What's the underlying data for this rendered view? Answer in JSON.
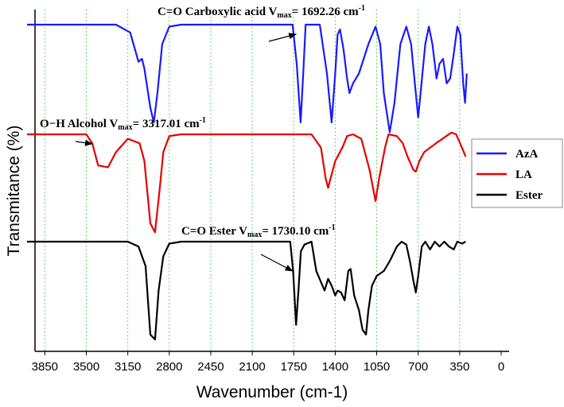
{
  "chart_data": {
    "type": "line",
    "xlabel": "Wavenumber (cm-1)",
    "ylabel": "Transmitance (%)",
    "xlim": [
      4000,
      0
    ],
    "x_reversed": true,
    "x_ticks": [
      3850,
      3500,
      3150,
      2800,
      2450,
      2100,
      1750,
      1400,
      1050,
      700,
      350,
      0
    ],
    "grid": "vertical dotted green",
    "legend_placement": "right",
    "series": [
      {
        "name": "AzA",
        "color": "#1a1aff",
        "baseline": 1,
        "points": [
          [
            4000,
            0
          ],
          [
            3250,
            0
          ],
          [
            3130,
            -0.08
          ],
          [
            3060,
            -0.38
          ],
          [
            3030,
            -0.35
          ],
          [
            3010,
            -0.45
          ],
          [
            2960,
            -0.85
          ],
          [
            2930,
            -1.0
          ],
          [
            2900,
            -0.7
          ],
          [
            2860,
            -0.2
          ],
          [
            2800,
            -0.02
          ],
          [
            2700,
            0
          ],
          [
            1760,
            0
          ],
          [
            1725,
            -0.4
          ],
          [
            1692,
            -1.0
          ],
          [
            1670,
            -0.5
          ],
          [
            1650,
            0
          ],
          [
            1530,
            0
          ],
          [
            1470,
            -0.5
          ],
          [
            1430,
            -1.0
          ],
          [
            1400,
            -0.5
          ],
          [
            1380,
            -0.1
          ],
          [
            1360,
            -0.05
          ],
          [
            1330,
            -0.25
          ],
          [
            1300,
            -0.55
          ],
          [
            1280,
            -0.7
          ],
          [
            1250,
            -0.6
          ],
          [
            1200,
            -0.5
          ],
          [
            1120,
            -0.2
          ],
          [
            1060,
            -0.02
          ],
          [
            1020,
            -0.2
          ],
          [
            990,
            -0.7
          ],
          [
            940,
            -1.1
          ],
          [
            900,
            -0.8
          ],
          [
            850,
            -0.2
          ],
          [
            800,
            -0.02
          ],
          [
            760,
            -0.2
          ],
          [
            720,
            -0.7
          ],
          [
            700,
            -0.95
          ],
          [
            680,
            -0.7
          ],
          [
            640,
            -0.2
          ],
          [
            610,
            -0.02
          ],
          [
            580,
            -0.2
          ],
          [
            545,
            -0.55
          ],
          [
            520,
            -0.4
          ],
          [
            490,
            -0.35
          ],
          [
            460,
            -0.6
          ],
          [
            430,
            -0.55
          ],
          [
            400,
            -0.3
          ],
          [
            370,
            -0.02
          ],
          [
            345,
            -0.1
          ],
          [
            320,
            -0.6
          ],
          [
            305,
            -0.8
          ],
          [
            290,
            -0.5
          ]
        ]
      },
      {
        "name": "LA",
        "color": "#e60000",
        "baseline": 0,
        "points": [
          [
            4000,
            0
          ],
          [
            3500,
            0
          ],
          [
            3450,
            -0.1
          ],
          [
            3400,
            -0.35
          ],
          [
            3317,
            -0.37
          ],
          [
            3250,
            -0.2
          ],
          [
            3150,
            -0.05
          ],
          [
            3050,
            -0.1
          ],
          [
            3010,
            -0.3
          ],
          [
            2960,
            -1.0
          ],
          [
            2920,
            -1.1
          ],
          [
            2880,
            -0.6
          ],
          [
            2850,
            -0.2
          ],
          [
            2800,
            -0.02
          ],
          [
            2700,
            0
          ],
          [
            1600,
            0
          ],
          [
            1520,
            -0.15
          ],
          [
            1480,
            -0.5
          ],
          [
            1460,
            -0.6
          ],
          [
            1440,
            -0.5
          ],
          [
            1400,
            -0.3
          ],
          [
            1340,
            -0.15
          ],
          [
            1300,
            -0.02
          ],
          [
            1250,
            0
          ],
          [
            1180,
            -0.05
          ],
          [
            1110,
            -0.4
          ],
          [
            1060,
            -0.75
          ],
          [
            1030,
            -0.5
          ],
          [
            980,
            -0.15
          ],
          [
            950,
            0
          ],
          [
            880,
            -0.02
          ],
          [
            830,
            -0.1
          ],
          [
            790,
            -0.25
          ],
          [
            740,
            -0.4
          ],
          [
            720,
            -0.42
          ],
          [
            690,
            -0.3
          ],
          [
            650,
            -0.2
          ],
          [
            550,
            -0.1
          ],
          [
            420,
            0.02
          ],
          [
            380,
            0
          ],
          [
            330,
            -0.15
          ],
          [
            300,
            -0.25
          ]
        ]
      },
      {
        "name": "Ester",
        "color": "#000000",
        "baseline": -1,
        "points": [
          [
            4000,
            0
          ],
          [
            3150,
            0
          ],
          [
            3060,
            -0.05
          ],
          [
            3000,
            -0.25
          ],
          [
            2960,
            -0.95
          ],
          [
            2920,
            -1.0
          ],
          [
            2890,
            -0.5
          ],
          [
            2850,
            -0.15
          ],
          [
            2800,
            -0.02
          ],
          [
            2700,
            0
          ],
          [
            1780,
            0
          ],
          [
            1755,
            -0.3
          ],
          [
            1730,
            -0.85
          ],
          [
            1710,
            -0.5
          ],
          [
            1690,
            -0.1
          ],
          [
            1660,
            -0.03
          ],
          [
            1600,
            0
          ],
          [
            1560,
            -0.3
          ],
          [
            1490,
            -0.5
          ],
          [
            1460,
            -0.38
          ],
          [
            1430,
            -0.45
          ],
          [
            1400,
            -0.55
          ],
          [
            1380,
            -0.5
          ],
          [
            1350,
            -0.52
          ],
          [
            1320,
            -0.6
          ],
          [
            1290,
            -0.3
          ],
          [
            1270,
            -0.28
          ],
          [
            1240,
            -0.55
          ],
          [
            1200,
            -0.7
          ],
          [
            1170,
            -0.9
          ],
          [
            1140,
            -0.95
          ],
          [
            1120,
            -0.7
          ],
          [
            1090,
            -0.45
          ],
          [
            1050,
            -0.35
          ],
          [
            990,
            -0.3
          ],
          [
            940,
            -0.2
          ],
          [
            880,
            -0.05
          ],
          [
            840,
            0
          ],
          [
            800,
            -0.03
          ],
          [
            770,
            -0.2
          ],
          [
            740,
            -0.4
          ],
          [
            720,
            -0.52
          ],
          [
            700,
            -0.35
          ],
          [
            670,
            -0.05
          ],
          [
            640,
            0
          ],
          [
            600,
            -0.08
          ],
          [
            560,
            0
          ],
          [
            520,
            -0.05
          ],
          [
            480,
            0
          ],
          [
            440,
            -0.05
          ],
          [
            400,
            -0.08
          ],
          [
            370,
            0
          ],
          [
            330,
            -0.02
          ],
          [
            300,
            0
          ]
        ]
      }
    ],
    "annotations": [
      {
        "text": "C=O Carboxylic acid V",
        "sub": "max",
        "value": "= 1692.26 cm",
        "sup": "-1",
        "arrow_target": [
          1730,
          "AzA",
          0
        ]
      },
      {
        "text": "O−H  Alcohol V",
        "sub": "max",
        "value": "= 3317.01 cm",
        "sup": "-1",
        "arrow_target": [
          3450,
          "LA",
          0
        ]
      },
      {
        "text": "C=O Ester V",
        "sub": "max",
        "value": "= 1730.10 cm",
        "sup": "-1",
        "arrow_target": [
          1760,
          "Ester",
          -0.3
        ]
      }
    ]
  }
}
